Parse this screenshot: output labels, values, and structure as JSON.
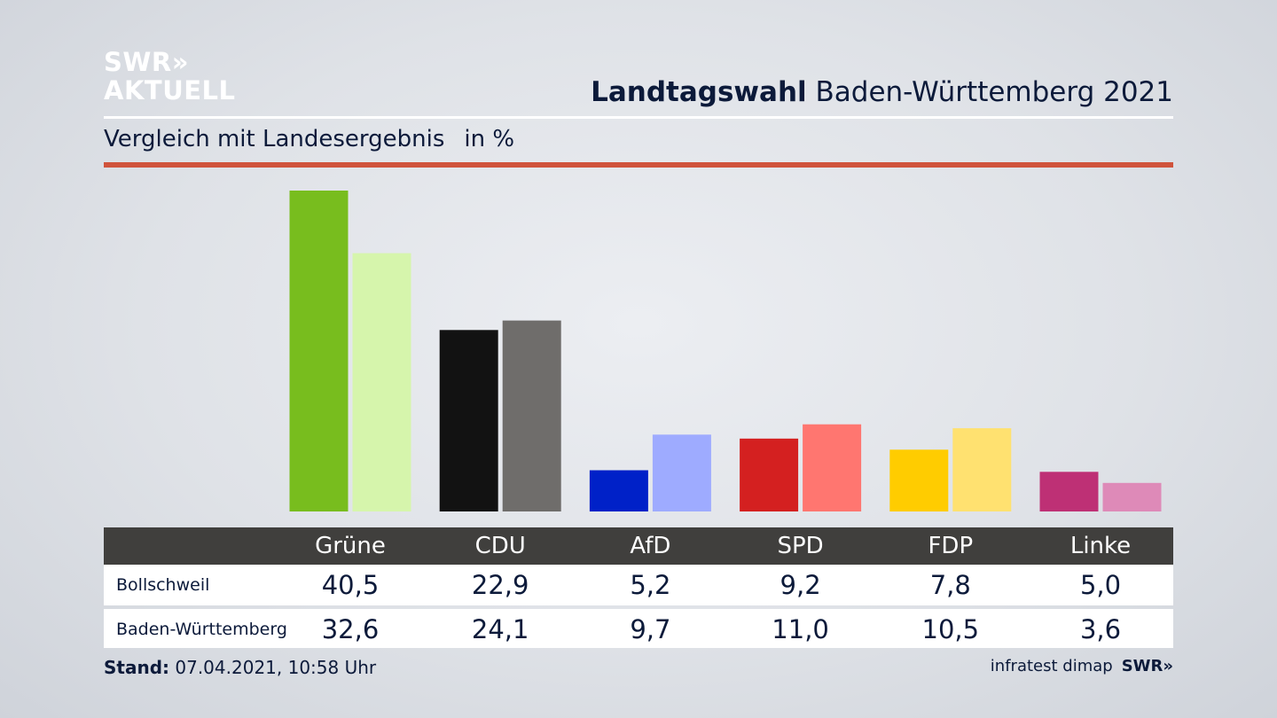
{
  "logo": {
    "line1": "SWR»",
    "line2": "AKTUELL"
  },
  "title": {
    "bold": "Landtagswahl",
    "rest": "Baden-Württemberg 2021"
  },
  "subtitle": {
    "text": "Vergleich mit Landesergebnis",
    "unit": "in %"
  },
  "table": {
    "parties": [
      "Grüne",
      "CDU",
      "AfD",
      "SPD",
      "FDP",
      "Linke"
    ],
    "rows": [
      {
        "label": "Bollschweil",
        "values": [
          "40,5",
          "22,9",
          "5,2",
          "9,2",
          "7,8",
          "5,0"
        ]
      },
      {
        "label": "Baden-Württemberg",
        "values": [
          "32,6",
          "24,1",
          "9,7",
          "11,0",
          "10,5",
          "3,6"
        ]
      }
    ]
  },
  "footer": {
    "stand_label": "Stand:",
    "stand_value": "07.04.2021, 10:58 Uhr"
  },
  "source": {
    "text": "infratest dimap",
    "brand": "SWR»"
  },
  "chart_data": {
    "type": "bar",
    "title": "Landtagswahl Baden-Württemberg 2021",
    "subtitle": "Vergleich mit Landesergebnis",
    "ylabel": "in %",
    "categories": [
      "Grüne",
      "CDU",
      "AfD",
      "SPD",
      "FDP",
      "Linke"
    ],
    "series": [
      {
        "name": "Bollschweil",
        "values": [
          40.5,
          22.9,
          5.2,
          9.2,
          7.8,
          5.0
        ],
        "colors": [
          "#78bd1e",
          "#121212",
          "#0021c8",
          "#d42020",
          "#ffcc00",
          "#be3075"
        ]
      },
      {
        "name": "Baden-Württemberg",
        "values": [
          32.6,
          24.1,
          9.7,
          11.0,
          10.5,
          3.6
        ],
        "colors": [
          "#d6f5ac",
          "#6f6d6b",
          "#9eabff",
          "#ff7670",
          "#ffe170",
          "#de8ab8"
        ]
      }
    ],
    "ylim": [
      0,
      40.5
    ],
    "grid": false,
    "legend": "table-below"
  }
}
